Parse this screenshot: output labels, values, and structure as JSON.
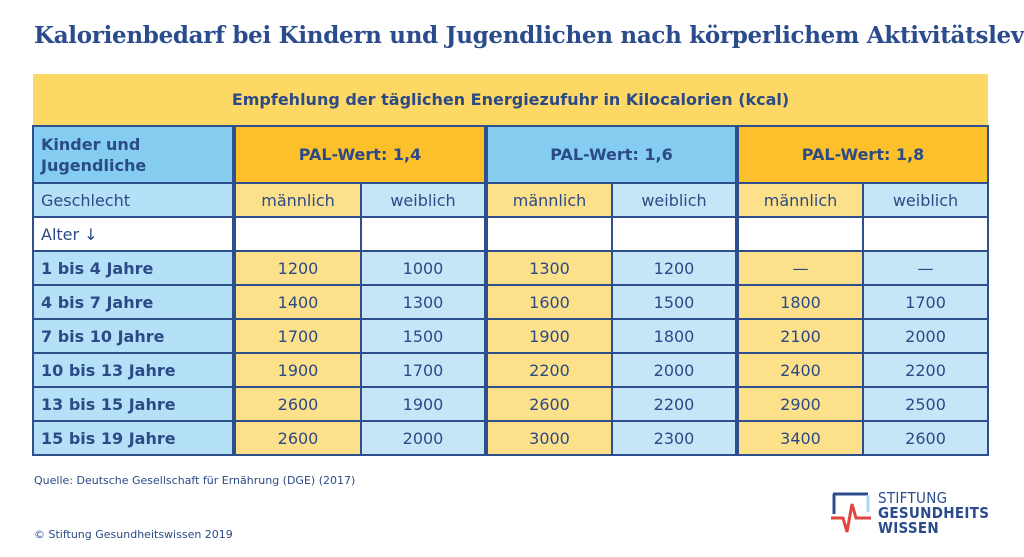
{
  "title": "Kalorienbedarf bei Kindern und Jugendlichen nach körperlichem Aktivitätslevel",
  "band": "Empfehlung der täglichen Energiezufuhr in Kilocalorien (kcal)",
  "header": {
    "group_label": "Kinder und Jugendliche",
    "pal": [
      "PAL-Wert: 1,4",
      "PAL-Wert: 1,6",
      "PAL-Wert: 1,8"
    ]
  },
  "sex_row": {
    "label": "Geschlecht",
    "cols": [
      "männlich",
      "weiblich",
      "männlich",
      "weiblich",
      "männlich",
      "weiblich"
    ]
  },
  "age_label": "Alter ↓",
  "rows": [
    {
      "age": "1 bis 4 Jahre",
      "v": [
        "1200",
        "1000",
        "1300",
        "1200",
        "—",
        "—"
      ]
    },
    {
      "age": "4 bis 7 Jahre",
      "v": [
        "1400",
        "1300",
        "1600",
        "1500",
        "1800",
        "1700"
      ]
    },
    {
      "age": "7 bis 10 Jahre",
      "v": [
        "1700",
        "1500",
        "1900",
        "1800",
        "2100",
        "2000"
      ]
    },
    {
      "age": "10 bis 13 Jahre",
      "v": [
        "1900",
        "1700",
        "2200",
        "2000",
        "2400",
        "2200"
      ]
    },
    {
      "age": "13 bis 15 Jahre",
      "v": [
        "2600",
        "1900",
        "2600",
        "2200",
        "2900",
        "2500"
      ]
    },
    {
      "age": "15 bis 19 Jahre",
      "v": [
        "2600",
        "2000",
        "3000",
        "2300",
        "3400",
        "2600"
      ]
    }
  ],
  "source": "Quelle: Deutsche Gesellschaft für Ernährung (DGE) (2017)",
  "copyright": "© Stiftung Gesundheitswissen 2019",
  "logo": {
    "line1": "STIFTUNG",
    "line2": "GESUNDHEITS",
    "line3": "WISSEN"
  }
}
